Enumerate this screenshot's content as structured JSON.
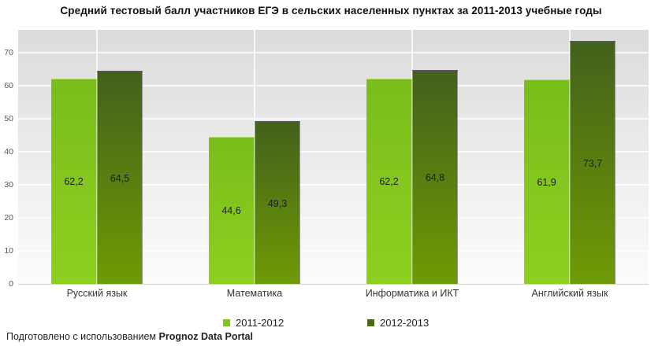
{
  "title": "Средний тестовый балл участников ЕГЭ в сельских населенных пунктах за 2011-2013 учебные годы",
  "chart_data": {
    "type": "bar",
    "categories": [
      "Русский язык",
      "Математика",
      "Информатика и ИКТ",
      "Английский язык"
    ],
    "series": [
      {
        "name": "2011-2012",
        "values": [
          62.2,
          44.6,
          62.2,
          61.9
        ],
        "labels": [
          "62,2",
          "44,6",
          "62,2",
          "61,9"
        ],
        "color_top": "#79bd1b",
        "color_bottom": "#8ed020",
        "legend_color": "#83c51d"
      },
      {
        "name": "2012-2013",
        "values": [
          64.5,
          49.3,
          64.8,
          73.7
        ],
        "labels": [
          "64,5",
          "49,3",
          "64,8",
          "73,7"
        ],
        "color_top": "#42611b",
        "color_bottom": "#6f9b04",
        "legend_color": "#4b681a"
      }
    ],
    "ylim": [
      0,
      77
    ],
    "yticks": [
      0,
      10,
      20,
      30,
      40,
      50,
      60,
      70
    ],
    "grid": true,
    "legend_position": "bottom",
    "value_labels_inside_bars": true,
    "decimal_separator": ","
  },
  "colors": {
    "plot_bg_top": "#dbdbda",
    "plot_bg_bottom": "#fbfbfa",
    "gridline": "#ffffff",
    "axis_line": "#cfcfcf"
  },
  "footer": {
    "prefix": "Подготовлено с использованием ",
    "brand": "Prognoz Data Portal"
  }
}
